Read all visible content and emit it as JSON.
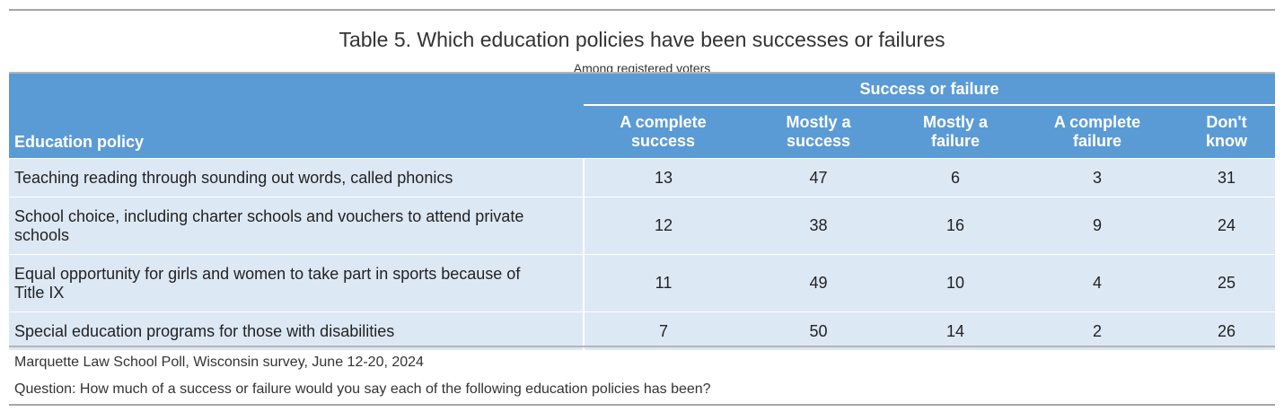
{
  "title": "Table 5. Which education policies have been successes or failures",
  "subtitle": "Among registered voters",
  "table": {
    "group_header": "Success or failure",
    "policy_header": "Education policy",
    "columns": [
      [
        "A complete",
        "success"
      ],
      [
        "Mostly a",
        "success"
      ],
      [
        "Mostly a",
        "failure"
      ],
      [
        "A complete",
        "failure"
      ],
      [
        "Don't",
        "know"
      ]
    ],
    "rows": [
      {
        "policy": [
          "Teaching reading through sounding out words, called phonics"
        ],
        "values": [
          "13",
          "47",
          "6",
          "3",
          "31"
        ]
      },
      {
        "policy": [
          "School choice, including charter schools and vouchers to attend private",
          "schools"
        ],
        "values": [
          "12",
          "38",
          "16",
          "9",
          "24"
        ]
      },
      {
        "policy": [
          "Equal opportunity for girls and women to take part in sports because of",
          "Title IX"
        ],
        "values": [
          "11",
          "49",
          "10",
          "4",
          "25"
        ]
      },
      {
        "policy": [
          "Special education programs for those with disabilities"
        ],
        "values": [
          "7",
          "50",
          "14",
          "2",
          "26"
        ]
      }
    ]
  },
  "source": "Marquette Law School Poll, Wisconsin survey, June 12-20, 2024",
  "question": "Question: How much of a success or failure would you say each of the following education policies has been?",
  "colors": {
    "header_bg": "#5b9bd5",
    "row_bg": "#dde8f5",
    "rule": "#a6a6a6"
  }
}
